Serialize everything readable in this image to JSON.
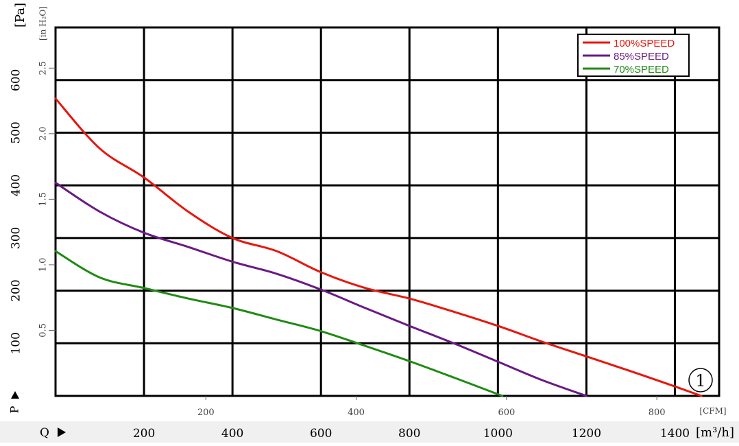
{
  "chart_data": {
    "type": "line",
    "x_unit_primary": "[m³/h]",
    "x_unit_secondary": "[CFM]",
    "y_unit_primary": "[Pa]",
    "y_unit_secondary": "[in H₂O]",
    "x_axis_prefix": "Q",
    "y_axis_prefix": "P",
    "x_range": [
      0,
      1500
    ],
    "y_range": [
      0,
      700
    ],
    "x_ticks_primary": [
      "200",
      "400",
      "600",
      "800",
      "1000",
      "1200",
      "1400"
    ],
    "x_ticks_secondary": [
      "200",
      "400",
      "600",
      "800"
    ],
    "y_ticks_primary": [
      "100",
      "200",
      "300",
      "400",
      "500",
      "600"
    ],
    "y_ticks_secondary": [
      "0.5",
      "1.0",
      "1.5",
      "2.0",
      "2.5"
    ],
    "grid": true,
    "legend_placement": "top-right",
    "annotation": "1",
    "series": [
      {
        "name": "100%SPEED",
        "color": "#e8160e",
        "points": [
          [
            0,
            565
          ],
          [
            100,
            470
          ],
          [
            200,
            415
          ],
          [
            300,
            350
          ],
          [
            400,
            300
          ],
          [
            500,
            275
          ],
          [
            600,
            235
          ],
          [
            700,
            205
          ],
          [
            800,
            185
          ],
          [
            900,
            160
          ],
          [
            1000,
            133
          ],
          [
            1100,
            103
          ],
          [
            1200,
            75
          ],
          [
            1300,
            47
          ],
          [
            1400,
            18
          ],
          [
            1460,
            0
          ]
        ]
      },
      {
        "name": "85%SPEED",
        "color": "#6a1a84",
        "points": [
          [
            0,
            405
          ],
          [
            100,
            350
          ],
          [
            200,
            310
          ],
          [
            300,
            283
          ],
          [
            400,
            255
          ],
          [
            500,
            232
          ],
          [
            600,
            202
          ],
          [
            700,
            167
          ],
          [
            800,
            133
          ],
          [
            900,
            100
          ],
          [
            1000,
            65
          ],
          [
            1100,
            30
          ],
          [
            1200,
            0
          ]
        ]
      },
      {
        "name": "70%SPEED",
        "color": "#208a14",
        "points": [
          [
            0,
            275
          ],
          [
            100,
            225
          ],
          [
            200,
            205
          ],
          [
            300,
            185
          ],
          [
            400,
            167
          ],
          [
            500,
            145
          ],
          [
            600,
            123
          ],
          [
            700,
            95
          ],
          [
            800,
            66
          ],
          [
            900,
            35
          ],
          [
            1010,
            0
          ]
        ]
      }
    ]
  }
}
